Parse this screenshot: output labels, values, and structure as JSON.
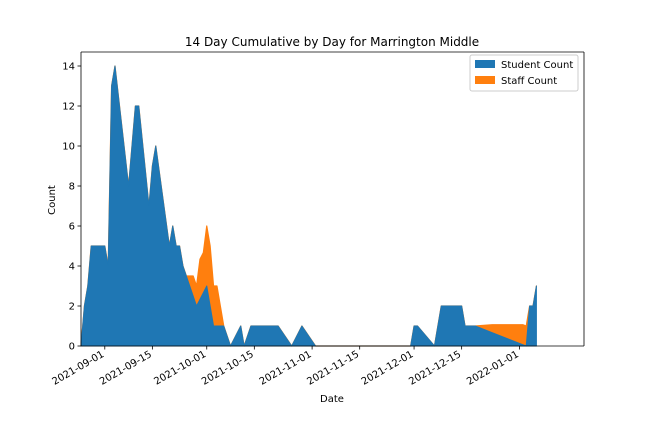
{
  "chart_data": {
    "type": "area",
    "stacked": true,
    "title": "14 Day Cumulative by Day for Marrington Middle",
    "xlabel": "Date",
    "ylabel": "Count",
    "ylim": [
      0,
      14.7
    ],
    "xlim": [
      "2021-08-25",
      "2022-01-20"
    ],
    "x_ticks": [
      "2021-09-01",
      "2021-09-15",
      "2021-10-01",
      "2021-10-15",
      "2021-11-01",
      "2021-11-15",
      "2021-12-01",
      "2021-12-15",
      "2022-01-01"
    ],
    "y_ticks": [
      0,
      2,
      4,
      6,
      8,
      10,
      12,
      14
    ],
    "grid": false,
    "legend_position": "upper-right",
    "series": [
      {
        "name": "Student Count",
        "color": "#1f77b4",
        "points": [
          [
            "2021-08-25",
            0
          ],
          [
            "2021-08-26",
            2
          ],
          [
            "2021-08-27",
            3
          ],
          [
            "2021-08-28",
            5
          ],
          [
            "2021-08-31",
            5
          ],
          [
            "2021-09-01",
            5
          ],
          [
            "2021-09-02",
            4
          ],
          [
            "2021-09-03",
            13
          ],
          [
            "2021-09-04",
            14
          ],
          [
            "2021-09-08",
            8
          ],
          [
            "2021-09-10",
            12
          ],
          [
            "2021-09-11",
            12
          ],
          [
            "2021-09-14",
            7
          ],
          [
            "2021-09-15",
            9
          ],
          [
            "2021-09-16",
            10
          ],
          [
            "2021-09-20",
            5
          ],
          [
            "2021-09-21",
            6
          ],
          [
            "2021-09-22",
            5
          ],
          [
            "2021-09-23",
            5
          ],
          [
            "2021-09-24",
            4
          ],
          [
            "2021-09-28",
            2
          ],
          [
            "2021-10-01",
            3
          ],
          [
            "2021-10-03",
            1
          ],
          [
            "2021-10-06",
            1
          ],
          [
            "2021-10-08",
            0
          ],
          [
            "2021-10-11",
            1
          ],
          [
            "2021-10-12",
            0
          ],
          [
            "2021-10-14",
            1
          ],
          [
            "2021-10-20",
            1
          ],
          [
            "2021-10-22",
            1
          ],
          [
            "2021-10-26",
            0
          ],
          [
            "2021-10-29",
            1
          ],
          [
            "2021-11-02",
            0
          ],
          [
            "2021-11-30",
            0
          ],
          [
            "2021-12-01",
            1
          ],
          [
            "2021-12-02",
            1
          ],
          [
            "2021-12-07",
            0
          ],
          [
            "2021-12-09",
            2
          ],
          [
            "2021-12-15",
            2
          ],
          [
            "2021-12-16",
            1
          ],
          [
            "2021-12-19",
            1
          ],
          [
            "2022-01-03",
            0
          ],
          [
            "2022-01-04",
            2
          ],
          [
            "2022-01-05",
            2
          ],
          [
            "2022-01-06",
            3
          ]
        ]
      },
      {
        "name": "Staff Count",
        "color": "#ff7f0e",
        "points": [
          [
            "2021-08-25",
            0
          ],
          [
            "2021-09-25",
            0
          ],
          [
            "2021-09-27",
            1
          ],
          [
            "2021-09-28",
            1
          ],
          [
            "2021-09-29",
            2
          ],
          [
            "2021-09-30",
            2
          ],
          [
            "2021-10-01",
            3
          ],
          [
            "2021-10-02",
            3
          ],
          [
            "2021-10-03",
            2
          ],
          [
            "2021-10-04",
            2
          ],
          [
            "2021-10-05",
            1
          ],
          [
            "2021-10-06",
            0
          ],
          [
            "2021-12-15",
            0
          ],
          [
            "2021-12-16",
            0
          ],
          [
            "2021-12-19",
            0
          ],
          [
            "2021-12-24",
            0.4
          ],
          [
            "2022-01-02",
            1
          ],
          [
            "2022-01-03",
            1
          ],
          [
            "2022-01-04",
            0
          ],
          [
            "2022-01-06",
            0
          ]
        ]
      }
    ]
  }
}
